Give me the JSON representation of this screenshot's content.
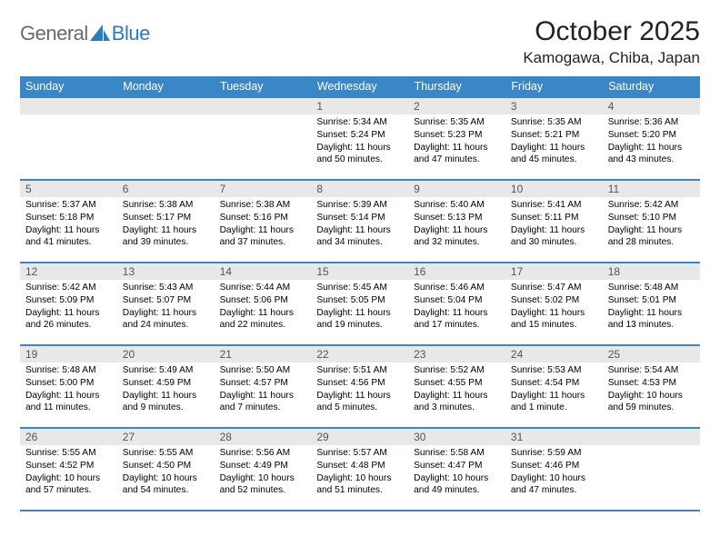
{
  "brand": {
    "general": "General",
    "blue": "Blue"
  },
  "title": "October 2025",
  "location": "Kamogawa, Chiba, Japan",
  "weekdays": [
    "Sunday",
    "Monday",
    "Tuesday",
    "Wednesday",
    "Thursday",
    "Friday",
    "Saturday"
  ],
  "colors": {
    "header_bg": "#3b86c6",
    "header_text": "#ffffff",
    "daynum_bg": "#e8e8e8",
    "brand_gray": "#6a6a6a",
    "brand_blue": "#2f79bf"
  },
  "weeks": [
    [
      {
        "n": "",
        "sr": "",
        "ss": "",
        "dl": ""
      },
      {
        "n": "",
        "sr": "",
        "ss": "",
        "dl": ""
      },
      {
        "n": "",
        "sr": "",
        "ss": "",
        "dl": ""
      },
      {
        "n": "1",
        "sr": "Sunrise: 5:34 AM",
        "ss": "Sunset: 5:24 PM",
        "dl": "Daylight: 11 hours and 50 minutes."
      },
      {
        "n": "2",
        "sr": "Sunrise: 5:35 AM",
        "ss": "Sunset: 5:23 PM",
        "dl": "Daylight: 11 hours and 47 minutes."
      },
      {
        "n": "3",
        "sr": "Sunrise: 5:35 AM",
        "ss": "Sunset: 5:21 PM",
        "dl": "Daylight: 11 hours and 45 minutes."
      },
      {
        "n": "4",
        "sr": "Sunrise: 5:36 AM",
        "ss": "Sunset: 5:20 PM",
        "dl": "Daylight: 11 hours and 43 minutes."
      }
    ],
    [
      {
        "n": "5",
        "sr": "Sunrise: 5:37 AM",
        "ss": "Sunset: 5:18 PM",
        "dl": "Daylight: 11 hours and 41 minutes."
      },
      {
        "n": "6",
        "sr": "Sunrise: 5:38 AM",
        "ss": "Sunset: 5:17 PM",
        "dl": "Daylight: 11 hours and 39 minutes."
      },
      {
        "n": "7",
        "sr": "Sunrise: 5:38 AM",
        "ss": "Sunset: 5:16 PM",
        "dl": "Daylight: 11 hours and 37 minutes."
      },
      {
        "n": "8",
        "sr": "Sunrise: 5:39 AM",
        "ss": "Sunset: 5:14 PM",
        "dl": "Daylight: 11 hours and 34 minutes."
      },
      {
        "n": "9",
        "sr": "Sunrise: 5:40 AM",
        "ss": "Sunset: 5:13 PM",
        "dl": "Daylight: 11 hours and 32 minutes."
      },
      {
        "n": "10",
        "sr": "Sunrise: 5:41 AM",
        "ss": "Sunset: 5:11 PM",
        "dl": "Daylight: 11 hours and 30 minutes."
      },
      {
        "n": "11",
        "sr": "Sunrise: 5:42 AM",
        "ss": "Sunset: 5:10 PM",
        "dl": "Daylight: 11 hours and 28 minutes."
      }
    ],
    [
      {
        "n": "12",
        "sr": "Sunrise: 5:42 AM",
        "ss": "Sunset: 5:09 PM",
        "dl": "Daylight: 11 hours and 26 minutes."
      },
      {
        "n": "13",
        "sr": "Sunrise: 5:43 AM",
        "ss": "Sunset: 5:07 PM",
        "dl": "Daylight: 11 hours and 24 minutes."
      },
      {
        "n": "14",
        "sr": "Sunrise: 5:44 AM",
        "ss": "Sunset: 5:06 PM",
        "dl": "Daylight: 11 hours and 22 minutes."
      },
      {
        "n": "15",
        "sr": "Sunrise: 5:45 AM",
        "ss": "Sunset: 5:05 PM",
        "dl": "Daylight: 11 hours and 19 minutes."
      },
      {
        "n": "16",
        "sr": "Sunrise: 5:46 AM",
        "ss": "Sunset: 5:04 PM",
        "dl": "Daylight: 11 hours and 17 minutes."
      },
      {
        "n": "17",
        "sr": "Sunrise: 5:47 AM",
        "ss": "Sunset: 5:02 PM",
        "dl": "Daylight: 11 hours and 15 minutes."
      },
      {
        "n": "18",
        "sr": "Sunrise: 5:48 AM",
        "ss": "Sunset: 5:01 PM",
        "dl": "Daylight: 11 hours and 13 minutes."
      }
    ],
    [
      {
        "n": "19",
        "sr": "Sunrise: 5:48 AM",
        "ss": "Sunset: 5:00 PM",
        "dl": "Daylight: 11 hours and 11 minutes."
      },
      {
        "n": "20",
        "sr": "Sunrise: 5:49 AM",
        "ss": "Sunset: 4:59 PM",
        "dl": "Daylight: 11 hours and 9 minutes."
      },
      {
        "n": "21",
        "sr": "Sunrise: 5:50 AM",
        "ss": "Sunset: 4:57 PM",
        "dl": "Daylight: 11 hours and 7 minutes."
      },
      {
        "n": "22",
        "sr": "Sunrise: 5:51 AM",
        "ss": "Sunset: 4:56 PM",
        "dl": "Daylight: 11 hours and 5 minutes."
      },
      {
        "n": "23",
        "sr": "Sunrise: 5:52 AM",
        "ss": "Sunset: 4:55 PM",
        "dl": "Daylight: 11 hours and 3 minutes."
      },
      {
        "n": "24",
        "sr": "Sunrise: 5:53 AM",
        "ss": "Sunset: 4:54 PM",
        "dl": "Daylight: 11 hours and 1 minute."
      },
      {
        "n": "25",
        "sr": "Sunrise: 5:54 AM",
        "ss": "Sunset: 4:53 PM",
        "dl": "Daylight: 10 hours and 59 minutes."
      }
    ],
    [
      {
        "n": "26",
        "sr": "Sunrise: 5:55 AM",
        "ss": "Sunset: 4:52 PM",
        "dl": "Daylight: 10 hours and 57 minutes."
      },
      {
        "n": "27",
        "sr": "Sunrise: 5:55 AM",
        "ss": "Sunset: 4:50 PM",
        "dl": "Daylight: 10 hours and 54 minutes."
      },
      {
        "n": "28",
        "sr": "Sunrise: 5:56 AM",
        "ss": "Sunset: 4:49 PM",
        "dl": "Daylight: 10 hours and 52 minutes."
      },
      {
        "n": "29",
        "sr": "Sunrise: 5:57 AM",
        "ss": "Sunset: 4:48 PM",
        "dl": "Daylight: 10 hours and 51 minutes."
      },
      {
        "n": "30",
        "sr": "Sunrise: 5:58 AM",
        "ss": "Sunset: 4:47 PM",
        "dl": "Daylight: 10 hours and 49 minutes."
      },
      {
        "n": "31",
        "sr": "Sunrise: 5:59 AM",
        "ss": "Sunset: 4:46 PM",
        "dl": "Daylight: 10 hours and 47 minutes."
      },
      {
        "n": "",
        "sr": "",
        "ss": "",
        "dl": ""
      }
    ]
  ]
}
